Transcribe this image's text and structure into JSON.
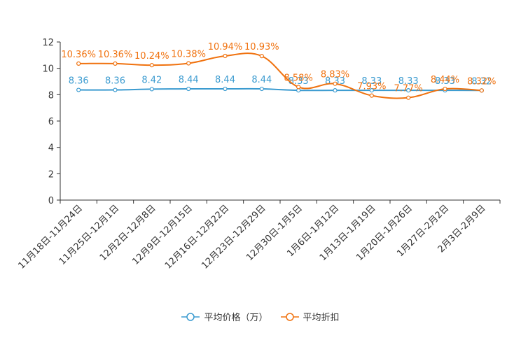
{
  "chart_data": {
    "type": "line",
    "categories": [
      "11月18日-11月24日",
      "11月25日-12月1日",
      "12月2日-12月8日",
      "12月9日-12月15日",
      "12月16日-12月22日",
      "12月23日-12月29日",
      "12月30日-1月5日",
      "1月6日-1月12日",
      "1月13日-1月19日",
      "1月20日-1月26日",
      "1月27日-2月2日",
      "2月3日-2月9日"
    ],
    "ylim": [
      0,
      12
    ],
    "yticks": [
      0,
      2,
      4,
      6,
      8,
      10,
      12
    ],
    "series": [
      {
        "name": "平均价格（万）",
        "color": "#3b9bd0",
        "values": [
          8.36,
          8.36,
          8.42,
          8.44,
          8.44,
          8.44,
          8.33,
          8.33,
          8.33,
          8.33,
          8.33,
          8.32
        ],
        "labels": [
          "8.36",
          "8.36",
          "8.42",
          "8.44",
          "8.44",
          "8.44",
          "8.33",
          "8.33",
          "8.33",
          "8.33",
          "8.33",
          "8.32"
        ]
      },
      {
        "name": "平均折扣",
        "color": "#f0720f",
        "values": [
          10.36,
          10.36,
          10.24,
          10.38,
          10.94,
          10.93,
          8.58,
          8.83,
          7.93,
          7.77,
          8.44,
          8.32
        ],
        "labels": [
          "10.36%",
          "10.36%",
          "10.24%",
          "10.38%",
          "10.94%",
          "10.93%",
          "8.58%",
          "8.83%",
          "7.93%",
          "7.77%",
          "8.44%",
          "8.32%"
        ]
      }
    ],
    "legend_position": "bottom-center"
  }
}
